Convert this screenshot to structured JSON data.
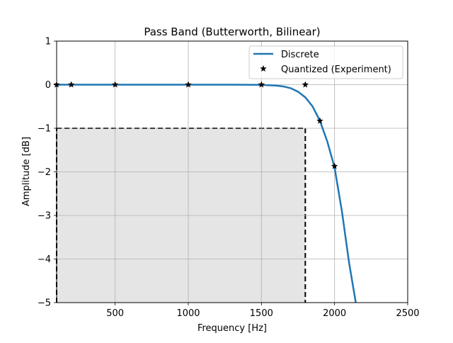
{
  "chart_data": {
    "type": "line",
    "title": "Pass Band (Butterworth, Bilinear)",
    "xlabel": "Frequency [Hz]",
    "ylabel": "Amplitude [dB]",
    "xlim": [
      100,
      2500
    ],
    "ylim": [
      -5,
      1
    ],
    "xticks": [
      500,
      1000,
      1500,
      2000,
      2500
    ],
    "xtick_labels": [
      "500",
      "1000",
      "1500",
      "2000",
      "2500"
    ],
    "yticks": [
      -5,
      -4,
      -3,
      -2,
      -1,
      0,
      1
    ],
    "ytick_labels": [
      "−5",
      "−4",
      "−3",
      "−2",
      "−1",
      "0",
      "1"
    ],
    "grid": true,
    "legend_position": "top-right",
    "series": [
      {
        "name": "Discrete",
        "style": "line",
        "color": "#1f77b4",
        "x": [
          100,
          500,
          1000,
          1300,
          1500,
          1600,
          1650,
          1700,
          1750,
          1800,
          1850,
          1900,
          1950,
          2000,
          2050,
          2100,
          2150
        ],
        "y": [
          0,
          0,
          0,
          0,
          -0.005,
          -0.02,
          -0.04,
          -0.08,
          -0.16,
          -0.29,
          -0.5,
          -0.83,
          -1.3,
          -1.9,
          -2.9,
          -4.1,
          -5.1
        ]
      },
      {
        "name": "Quantized (Experiment)",
        "style": "marker",
        "marker": "star",
        "color": "#000000",
        "x": [
          100,
          200,
          500,
          1000,
          1500,
          1800,
          1900,
          2000
        ],
        "y": [
          0,
          0,
          0,
          0,
          0,
          0,
          -0.83,
          -1.87
        ]
      }
    ],
    "shaded_region": {
      "x": [
        100,
        1800
      ],
      "y": [
        -5,
        -1
      ],
      "fill": "#e5e5e5",
      "border": "dashed",
      "border_color": "#000000"
    }
  }
}
